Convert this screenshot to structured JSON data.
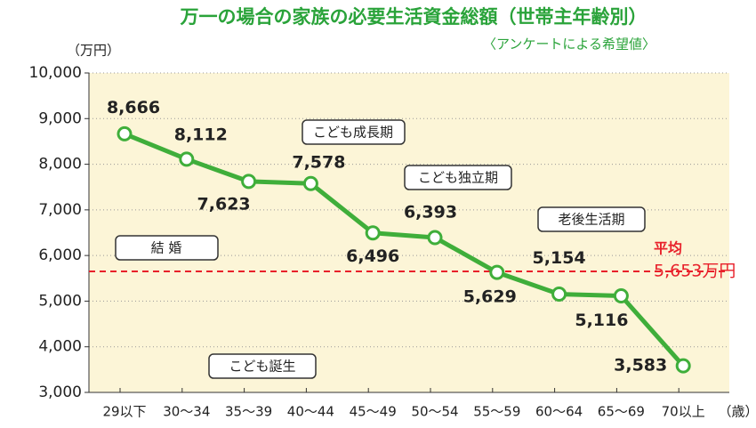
{
  "chart_data": {
    "type": "line",
    "title": "万一の場合の家族の必要生活資金総額（世帯主年齢別）",
    "subtitle": "〈アンケートによる希望値〉",
    "y_label": "（万円）",
    "x_label": "（歳）",
    "categories": [
      "29以下",
      "30〜34",
      "35〜39",
      "40〜44",
      "45〜49",
      "50〜54",
      "55〜59",
      "60〜64",
      "65〜69",
      "70以上"
    ],
    "values": [
      8666,
      8112,
      7623,
      7578,
      6496,
      6393,
      5629,
      5154,
      5116,
      3583
    ],
    "value_labels": [
      "8,666",
      "8,112",
      "7,623",
      "7,578",
      "6,496",
      "6,393",
      "5,629",
      "5,154",
      "5,116",
      "3,583"
    ],
    "color": "#3fae3a",
    "ylim": [
      3000,
      10000
    ],
    "yticks": [
      {
        "value": 3000,
        "label": "3,000"
      },
      {
        "value": 4000,
        "label": "4,000"
      },
      {
        "value": 5000,
        "label": "5,000"
      },
      {
        "value": 6000,
        "label": "6,000"
      },
      {
        "value": 7000,
        "label": "7,000"
      },
      {
        "value": 8000,
        "label": "8,000"
      },
      {
        "value": 9000,
        "label": "9,000"
      },
      {
        "value": 10000,
        "label": "10,000"
      }
    ],
    "grid": true,
    "average": {
      "label": "平均",
      "value": 5653,
      "value_label": "5,653万円",
      "color": "#e8202a"
    },
    "annotations": [
      "結 婚",
      "こども誕生",
      "こども成長期",
      "こども独立期",
      "老後生活期"
    ]
  }
}
